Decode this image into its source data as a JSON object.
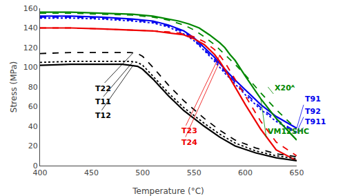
{
  "chart_data": {
    "type": "line",
    "xlabel": "Temperature (°C)",
    "ylabel": "Stress (MPa)",
    "xlim": [
      400,
      650
    ],
    "ylim": [
      0,
      160
    ],
    "xticks": [
      400,
      450,
      500,
      550,
      600,
      650
    ],
    "yticks": [
      0,
      20,
      40,
      60,
      80,
      100,
      120,
      140,
      160
    ],
    "grid": false,
    "series": [
      {
        "name": "T91",
        "color": "#0000ee",
        "line_style": "solid",
        "x": [
          400,
          430,
          460,
          490,
          510,
          525,
          540,
          550,
          560,
          570,
          580,
          590,
          600,
          615,
          630,
          650
        ],
        "values": [
          152,
          152,
          151,
          149,
          147,
          143,
          137,
          130,
          120,
          110,
          98,
          87,
          77,
          62,
          50,
          38
        ]
      },
      {
        "name": "T92",
        "color": "#0000ee",
        "line_style": "dashed",
        "x": [
          400,
          430,
          460,
          490,
          510,
          525,
          540,
          550,
          560,
          570,
          580,
          590,
          600,
          615,
          630,
          650
        ],
        "values": [
          151,
          151,
          150,
          148,
          146,
          142,
          136,
          128,
          118,
          108,
          96,
          85,
          74,
          59,
          47,
          34
        ]
      },
      {
        "name": "T911",
        "color": "#0000ee",
        "line_style": "dotted",
        "x": [
          400,
          430,
          460,
          490,
          510,
          525,
          540,
          550,
          560,
          570,
          580,
          590,
          600,
          615,
          630,
          650
        ],
        "values": [
          150,
          150,
          149,
          147,
          145,
          141,
          134,
          127,
          117,
          106,
          94,
          83,
          72,
          57,
          45,
          33
        ]
      },
      {
        "name": "VM12SHC",
        "color": "#008800",
        "line_style": "solid",
        "x": [
          400,
          430,
          460,
          490,
          510,
          525,
          535,
          545,
          555,
          565,
          575,
          580,
          585,
          590,
          600,
          615,
          630,
          650
        ],
        "values": [
          156,
          156,
          155,
          154,
          152,
          149,
          147,
          144,
          140,
          133,
          125,
          120,
          113,
          107,
          91,
          68,
          48,
          26
        ]
      },
      {
        "name": "X20ᴬ",
        "color": "#008800",
        "line_style": "dashed",
        "x": [
          400,
          430,
          460,
          490,
          510,
          525,
          540,
          550,
          560,
          570,
          580,
          590,
          600,
          615,
          630,
          650
        ],
        "values": [
          155,
          155,
          154,
          153,
          151,
          148,
          143,
          138,
          131,
          123,
          113,
          103,
          92,
          74,
          57,
          37
        ]
      },
      {
        "name": "T23",
        "color": "#ee0000",
        "line_style": "dashed",
        "x": [
          400,
          430,
          460,
          490,
          510,
          525,
          540,
          550,
          560,
          570,
          575,
          580,
          590,
          600,
          615,
          630,
          650
        ],
        "values": [
          140,
          140,
          139,
          138,
          137,
          136,
          134,
          131,
          126,
          118,
          112,
          105,
          88,
          70,
          45,
          24,
          10
        ]
      },
      {
        "name": "T24",
        "color": "#ee0000",
        "line_style": "solid",
        "x": [
          400,
          430,
          460,
          490,
          510,
          525,
          540,
          550,
          560,
          570,
          575,
          580,
          590,
          600,
          615,
          630,
          650
        ],
        "values": [
          140,
          140,
          139,
          138,
          137,
          135,
          133,
          129,
          123,
          113,
          106,
          98,
          80,
          62,
          37,
          16,
          5
        ]
      },
      {
        "name": "T22",
        "color": "#000000",
        "line_style": "dashed",
        "x": [
          400,
          430,
          460,
          480,
          488,
          495,
          500,
          510,
          525,
          540,
          550,
          560,
          575,
          590,
          610,
          630,
          650
        ],
        "values": [
          114,
          115,
          115,
          115,
          115,
          114,
          111,
          100,
          82,
          66,
          57,
          48,
          36,
          26,
          18,
          12,
          9
        ]
      },
      {
        "name": "T11",
        "color": "#000000",
        "line_style": "dotted",
        "x": [
          400,
          430,
          460,
          480,
          488,
          495,
          500,
          510,
          525,
          540,
          550,
          560,
          575,
          590,
          610,
          630,
          650
        ],
        "values": [
          105,
          106,
          106,
          106,
          106,
          105,
          102,
          91,
          74,
          59,
          51,
          43,
          32,
          23,
          15,
          10,
          7
        ]
      },
      {
        "name": "T12",
        "color": "#000000",
        "line_style": "solid",
        "x": [
          400,
          430,
          460,
          480,
          488,
          495,
          500,
          510,
          525,
          540,
          550,
          560,
          575,
          590,
          610,
          630,
          650
        ],
        "values": [
          102,
          103,
          103,
          103,
          102,
          101,
          98,
          88,
          71,
          56,
          48,
          40,
          29,
          20,
          13,
          8,
          5
        ]
      }
    ],
    "annotations": [
      {
        "text": "T91",
        "x": 650,
        "y": 38
      },
      {
        "text": "T92",
        "x": 650,
        "y": 34
      },
      {
        "text": "T911",
        "x": 650,
        "y": 33
      },
      {
        "text": "VM12SHC",
        "x": 615,
        "y": 68
      },
      {
        "text": "X20ᴬ",
        "x": 622,
        "y": 80
      },
      {
        "text": "T22",
        "x": 490,
        "y": 114
      },
      {
        "text": "T11",
        "x": 490,
        "y": 105
      },
      {
        "text": "T12",
        "x": 490,
        "y": 101
      },
      {
        "text": "T23",
        "x": 575,
        "y": 112
      },
      {
        "text": "T24",
        "x": 575,
        "y": 106
      }
    ]
  }
}
